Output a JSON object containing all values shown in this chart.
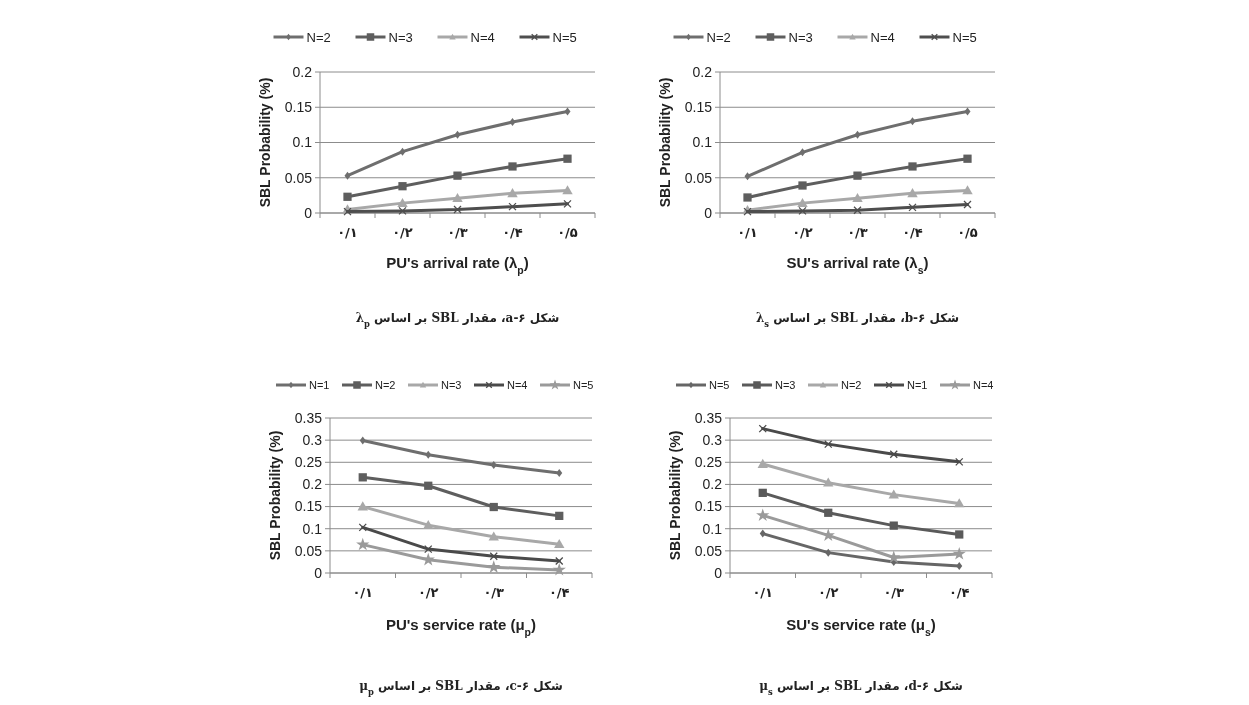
{
  "chart_data": [
    {
      "type": "line",
      "categories": [
        "۰/۱",
        "۰/۲",
        "۰/۳",
        "۰/۴",
        "۰/۵"
      ],
      "ylabel": "SBL Probability (%)",
      "xlabel": "PU's arrival rate (λ$_{p}$)",
      "annotations": [
        "شکل ۶-a، مقدار SBL بر اساس λ$_{p}$"
      ],
      "ylim": [
        0,
        0.2
      ],
      "yticks": [
        0,
        0.05,
        0.1,
        0.15,
        0.2
      ],
      "grid": "y",
      "legend": "top",
      "series": [
        {
          "name": "N=2",
          "color": "#6e6e6e",
          "marker": "diamond",
          "values": [
            0.053,
            0.087,
            0.111,
            0.129,
            0.144
          ]
        },
        {
          "name": "N=3",
          "color": "#5e5e5e",
          "marker": "square",
          "values": [
            0.023,
            0.038,
            0.053,
            0.066,
            0.077
          ]
        },
        {
          "name": "N=4",
          "color": "#a8a8a8",
          "marker": "triangle",
          "values": [
            0.005,
            0.014,
            0.021,
            0.028,
            0.032
          ]
        },
        {
          "name": "N=5",
          "color": "#4e4e4e",
          "marker": "cross",
          "values": [
            0.002,
            0.003,
            0.005,
            0.009,
            0.013
          ]
        }
      ]
    },
    {
      "type": "line",
      "categories": [
        "۰/۱",
        "۰/۲",
        "۰/۳",
        "۰/۴",
        "۰/۵"
      ],
      "ylabel": "SBL Probability (%)",
      "xlabel": "SU's arrival rate (λ$_{s}$)",
      "annotations": [
        "شکل ۶-b، مقدار SBL بر اساس λ$_{s}$"
      ],
      "ylim": [
        0,
        0.2
      ],
      "yticks": [
        0,
        0.05,
        0.1,
        0.15,
        0.2
      ],
      "grid": "y",
      "legend": "top",
      "series": [
        {
          "name": "N=2",
          "color": "#6e6e6e",
          "marker": "diamond",
          "values": [
            0.052,
            0.086,
            0.111,
            0.13,
            0.144
          ]
        },
        {
          "name": "N=3",
          "color": "#5e5e5e",
          "marker": "square",
          "values": [
            0.022,
            0.039,
            0.053,
            0.066,
            0.077
          ]
        },
        {
          "name": "N=4",
          "color": "#a8a8a8",
          "marker": "triangle",
          "values": [
            0.004,
            0.014,
            0.021,
            0.028,
            0.032
          ]
        },
        {
          "name": "N=5",
          "color": "#4e4e4e",
          "marker": "cross",
          "values": [
            0.002,
            0.003,
            0.004,
            0.008,
            0.012
          ]
        }
      ]
    },
    {
      "type": "line",
      "categories": [
        "۰/۱",
        "۰/۲",
        "۰/۳",
        "۰/۴"
      ],
      "ylabel": "SBL Probability (%)",
      "xlabel": "PU's service rate (μ$_{p}$)",
      "annotations": [
        "شکل ۶-c، مقدار SBL بر اساس μ$_{p}$"
      ],
      "ylim": [
        0,
        0.35
      ],
      "yticks": [
        0,
        0.05,
        0.1,
        0.15,
        0.2,
        0.25,
        0.3,
        0.35
      ],
      "grid": "y",
      "legend": "top",
      "series": [
        {
          "name": "N=1",
          "color": "#6e6e6e",
          "marker": "diamond",
          "values": [
            0.299,
            0.267,
            0.244,
            0.226
          ]
        },
        {
          "name": "N=2",
          "color": "#5e5e5e",
          "marker": "square",
          "values": [
            0.216,
            0.197,
            0.149,
            0.129
          ]
        },
        {
          "name": "N=3",
          "color": "#a8a8a8",
          "marker": "triangle",
          "values": [
            0.15,
            0.108,
            0.082,
            0.065
          ]
        },
        {
          "name": "N=4",
          "color": "#4a4a4a",
          "marker": "cross",
          "values": [
            0.103,
            0.054,
            0.038,
            0.027
          ]
        },
        {
          "name": "N=5",
          "color": "#9a9a9a",
          "marker": "star",
          "values": [
            0.064,
            0.03,
            0.013,
            0.007
          ]
        }
      ]
    },
    {
      "type": "line",
      "categories": [
        "۰/۱",
        "۰/۲",
        "۰/۳",
        "۰/۴"
      ],
      "ylabel": "SBL Probability (%)",
      "xlabel": "SU's service rate (μ$_{s}$)",
      "annotations": [
        "شکل ۶-d، مقدار SBL بر اساس μ$_{s}$"
      ],
      "ylim": [
        0,
        0.35
      ],
      "yticks": [
        0,
        0.05,
        0.1,
        0.15,
        0.2,
        0.25,
        0.3,
        0.35
      ],
      "grid": "y",
      "legend": "top",
      "series": [
        {
          "name": "N=5",
          "color": "#666666",
          "marker": "diamond",
          "values": [
            0.089,
            0.046,
            0.025,
            0.016
          ]
        },
        {
          "name": "N=3",
          "color": "#5a5a5a",
          "marker": "square",
          "values": [
            0.181,
            0.136,
            0.107,
            0.087
          ]
        },
        {
          "name": "N=2",
          "color": "#a8a8a8",
          "marker": "triangle",
          "values": [
            0.246,
            0.204,
            0.177,
            0.157
          ]
        },
        {
          "name": "N=1",
          "color": "#4a4a4a",
          "marker": "cross",
          "values": [
            0.326,
            0.291,
            0.268,
            0.251
          ]
        },
        {
          "name": "N=4",
          "color": "#9a9a9a",
          "marker": "star",
          "values": [
            0.13,
            0.085,
            0.035,
            0.043
          ]
        }
      ]
    }
  ]
}
